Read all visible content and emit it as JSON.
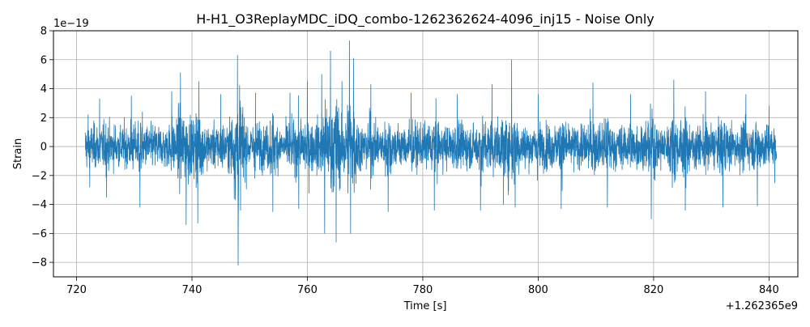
{
  "chart_data": {
    "type": "line",
    "title": "H-H1_O3ReplayMDC_iDQ_combo-1262362624-4096_inj15 - Noise Only",
    "xlabel": "Time [s]",
    "ylabel": "Strain",
    "x_offset_label": "+1.262365e9",
    "y_scale_label": "1e−19",
    "xlim": [
      716,
      845
    ],
    "ylim": [
      -9,
      8
    ],
    "x_ticks": [
      720,
      740,
      760,
      780,
      800,
      820,
      840
    ],
    "x_tick_labels": [
      "720",
      "740",
      "760",
      "780",
      "800",
      "820",
      "840"
    ],
    "y_ticks": [
      -8,
      -6,
      -4,
      -2,
      0,
      2,
      4,
      6,
      8
    ],
    "y_tick_labels": [
      "−8",
      "−6",
      "−4",
      "−2",
      "0",
      "2",
      "4",
      "6",
      "8"
    ],
    "grid": true,
    "series": [
      {
        "color": "#1f77b4",
        "x_start": 721.5,
        "x_end": 841.3,
        "typical_amplitude": 2.5,
        "peaks": [
          {
            "x": 722.0,
            "y": 2.2
          },
          {
            "x": 722.3,
            "y": -2.8
          },
          {
            "x": 724.0,
            "y": 3.3
          },
          {
            "x": 725.2,
            "y": -3.5
          },
          {
            "x": 729.5,
            "y": 3.5
          },
          {
            "x": 731.0,
            "y": -4.2
          },
          {
            "x": 736.5,
            "y": 3.8
          },
          {
            "x": 738.0,
            "y": 5.1
          },
          {
            "x": 739.0,
            "y": -5.4
          },
          {
            "x": 741.0,
            "y": -5.3
          },
          {
            "x": 741.2,
            "y": 4.5
          },
          {
            "x": 745.0,
            "y": 3.6
          },
          {
            "x": 747.9,
            "y": 6.3
          },
          {
            "x": 748.0,
            "y": -8.2
          },
          {
            "x": 751.0,
            "y": 3.7
          },
          {
            "x": 754.0,
            "y": -4.5
          },
          {
            "x": 757.0,
            "y": 3.7
          },
          {
            "x": 758.5,
            "y": -4.3
          },
          {
            "x": 760.0,
            "y": 4.5
          },
          {
            "x": 762.5,
            "y": 5.0
          },
          {
            "x": 763.0,
            "y": -6.0
          },
          {
            "x": 764.0,
            "y": 6.6
          },
          {
            "x": 765.0,
            "y": -6.6
          },
          {
            "x": 766.0,
            "y": 4.5
          },
          {
            "x": 767.3,
            "y": 7.3
          },
          {
            "x": 767.5,
            "y": -6.0
          },
          {
            "x": 768.0,
            "y": 6.1
          },
          {
            "x": 771.0,
            "y": 4.3
          },
          {
            "x": 774.0,
            "y": -4.5
          },
          {
            "x": 778.0,
            "y": 3.7
          },
          {
            "x": 782.0,
            "y": -4.4
          },
          {
            "x": 786.0,
            "y": 3.6
          },
          {
            "x": 790.0,
            "y": -4.4
          },
          {
            "x": 792.0,
            "y": 4.3
          },
          {
            "x": 794.0,
            "y": -4.0
          },
          {
            "x": 795.4,
            "y": 6.0
          },
          {
            "x": 796.0,
            "y": -4.2
          },
          {
            "x": 800.0,
            "y": 3.6
          },
          {
            "x": 804.0,
            "y": -4.3
          },
          {
            "x": 809.5,
            "y": 4.4
          },
          {
            "x": 812.0,
            "y": -4.2
          },
          {
            "x": 816.0,
            "y": 3.6
          },
          {
            "x": 819.6,
            "y": -5.0
          },
          {
            "x": 823.5,
            "y": 4.6
          },
          {
            "x": 825.5,
            "y": -4.4
          },
          {
            "x": 829.0,
            "y": 3.8
          },
          {
            "x": 832.0,
            "y": -4.2
          },
          {
            "x": 836.0,
            "y": 3.6
          },
          {
            "x": 838.0,
            "y": -4.1
          },
          {
            "x": 840.0,
            "y": 2.8
          },
          {
            "x": 841.0,
            "y": -2.5
          }
        ]
      }
    ]
  }
}
